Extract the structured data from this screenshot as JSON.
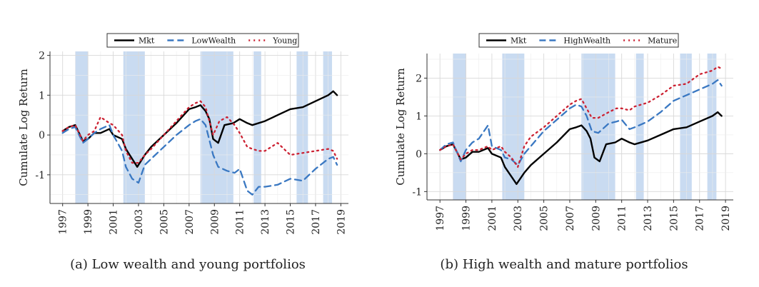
{
  "chart_data": [
    {
      "type": "line",
      "caption": "(a) Low wealth and young portfolios",
      "ylabel": "Cumulate Log Return",
      "xlim": [
        1996.0,
        2019.6
      ],
      "ylim": [
        -1.72,
        2.1
      ],
      "yticks": [
        -1,
        0,
        1,
        2
      ],
      "xticks": [
        1997,
        1999,
        2001,
        2003,
        2005,
        2007,
        2009,
        2011,
        2013,
        2015,
        2017,
        2019
      ],
      "grid": true,
      "legend": "top",
      "recessions": [
        [
          1998.0,
          1999.0
        ],
        [
          2001.8,
          2003.5
        ],
        [
          2007.9,
          2010.5
        ],
        [
          2012.1,
          2012.7
        ],
        [
          2015.5,
          2016.4
        ],
        [
          2017.6,
          2018.3
        ]
      ],
      "series": [
        {
          "name": "Mkt",
          "color": "#000000",
          "dash": "solid",
          "x": [
            1997,
            1997.5,
            1998,
            1998.6,
            1999,
            1999.5,
            2000,
            2000.7,
            2001,
            2001.7,
            2002,
            2002.5,
            2002.9,
            2003.5,
            2004,
            2005,
            2006,
            2007,
            2007.5,
            2007.9,
            2008.3,
            2008.6,
            2008.9,
            2009.3,
            2009.8,
            2010.5,
            2011,
            2011.6,
            2012,
            2013,
            2014,
            2015,
            2016,
            2017,
            2018,
            2018.4,
            2018.7
          ],
          "y": [
            0.1,
            0.2,
            0.25,
            -0.15,
            -0.1,
            0.05,
            0.05,
            0.15,
            0.0,
            -0.1,
            -0.35,
            -0.6,
            -0.8,
            -0.5,
            -0.3,
            0.0,
            0.3,
            0.65,
            0.7,
            0.75,
            0.6,
            0.4,
            -0.1,
            -0.2,
            0.25,
            0.3,
            0.4,
            0.3,
            0.25,
            0.35,
            0.5,
            0.65,
            0.7,
            0.85,
            1.0,
            1.1,
            1.0
          ]
        },
        {
          "name": "LowWealth",
          "color": "#3a78c2",
          "dash": "dashed",
          "x": [
            1997,
            1997.5,
            1998,
            1998.6,
            1999,
            1999.5,
            2000,
            2000.7,
            2001,
            2001.7,
            2002,
            2002.5,
            2003,
            2003.5,
            2004,
            2005,
            2006,
            2007,
            2007.5,
            2007.9,
            2008.3,
            2008.9,
            2009.3,
            2010,
            2010.6,
            2011,
            2011.6,
            2012,
            2012.5,
            2013,
            2014,
            2015,
            2016,
            2017,
            2018,
            2018.4,
            2018.7
          ],
          "y": [
            0.05,
            0.15,
            0.2,
            -0.2,
            -0.1,
            0.05,
            0.15,
            0.25,
            0.0,
            -0.4,
            -0.8,
            -1.1,
            -1.2,
            -0.75,
            -0.6,
            -0.3,
            0.0,
            0.25,
            0.35,
            0.4,
            0.25,
            -0.5,
            -0.8,
            -0.9,
            -0.95,
            -0.85,
            -1.4,
            -1.5,
            -1.3,
            -1.3,
            -1.25,
            -1.1,
            -1.15,
            -0.85,
            -0.6,
            -0.55,
            -0.75
          ]
        },
        {
          "name": "Young",
          "color": "#cc2233",
          "dash": "dotted",
          "x": [
            1997,
            1997.5,
            1998,
            1998.6,
            1999,
            1999.5,
            2000,
            2000.7,
            2001,
            2001.7,
            2002,
            2002.5,
            2003,
            2003.5,
            2004,
            2005,
            2006,
            2007,
            2007.5,
            2007.9,
            2008.3,
            2008.9,
            2009.4,
            2010,
            2010.6,
            2011,
            2011.6,
            2012,
            2012.5,
            2013,
            2014,
            2015,
            2016,
            2017,
            2018,
            2018.4,
            2018.7
          ],
          "y": [
            0.1,
            0.2,
            0.25,
            -0.15,
            0.0,
            0.1,
            0.45,
            0.3,
            0.25,
            0.0,
            -0.4,
            -0.7,
            -0.7,
            -0.5,
            -0.35,
            0.0,
            0.35,
            0.7,
            0.8,
            0.85,
            0.7,
            0.0,
            0.35,
            0.45,
            0.25,
            0.05,
            -0.3,
            -0.35,
            -0.4,
            -0.4,
            -0.2,
            -0.5,
            -0.45,
            -0.4,
            -0.35,
            -0.4,
            -0.6
          ]
        }
      ]
    },
    {
      "type": "line",
      "caption": "(b) High wealth and mature portfolios",
      "ylabel": "Cumulate Log Return",
      "xlim": [
        1996.0,
        2019.6
      ],
      "ylim": [
        -1.22,
        2.65
      ],
      "yticks": [
        -1,
        0,
        1,
        2
      ],
      "xticks": [
        1997,
        1999,
        2001,
        2003,
        2005,
        2007,
        2009,
        2011,
        2013,
        2015,
        2017,
        2019
      ],
      "grid": true,
      "legend": "top",
      "recessions": [
        [
          1998.0,
          1999.0
        ],
        [
          2001.8,
          2003.5
        ],
        [
          2007.9,
          2010.5
        ],
        [
          2012.1,
          2012.7
        ],
        [
          2015.5,
          2016.4
        ],
        [
          2017.6,
          2018.3
        ]
      ],
      "series": [
        {
          "name": "Mkt",
          "color": "#000000",
          "dash": "solid",
          "x": [
            1997,
            1997.5,
            1998,
            1998.6,
            1999,
            1999.5,
            2000,
            2000.7,
            2001,
            2001.7,
            2002,
            2002.5,
            2002.9,
            2003.5,
            2004,
            2005,
            2006,
            2007,
            2007.5,
            2007.9,
            2008.3,
            2008.6,
            2008.9,
            2009.3,
            2009.8,
            2010.5,
            2011,
            2011.6,
            2012,
            2013,
            2014,
            2015,
            2016,
            2017,
            2018,
            2018.4,
            2018.7
          ],
          "y": [
            0.1,
            0.2,
            0.25,
            -0.15,
            -0.1,
            0.05,
            0.05,
            0.15,
            0.0,
            -0.1,
            -0.35,
            -0.6,
            -0.8,
            -0.5,
            -0.3,
            0.0,
            0.3,
            0.65,
            0.7,
            0.75,
            0.6,
            0.4,
            -0.1,
            -0.2,
            0.25,
            0.3,
            0.4,
            0.3,
            0.25,
            0.35,
            0.5,
            0.65,
            0.7,
            0.85,
            1.0,
            1.1,
            1.0
          ]
        },
        {
          "name": "HighWealth",
          "color": "#3a78c2",
          "dash": "dashed",
          "x": [
            1997,
            1997.5,
            1998,
            1998.6,
            1999,
            1999.5,
            2000,
            2000.7,
            2001,
            2001.7,
            2002,
            2002.5,
            2003,
            2003.5,
            2004,
            2005,
            2006,
            2007,
            2007.5,
            2007.9,
            2008.3,
            2008.7,
            2009.2,
            2010,
            2010.6,
            2011,
            2011.6,
            2012,
            2013,
            2014,
            2015,
            2016,
            2017,
            2018,
            2018.4,
            2018.7
          ],
          "y": [
            0.1,
            0.25,
            0.3,
            -0.2,
            0.1,
            0.3,
            0.4,
            0.75,
            0.2,
            0.1,
            -0.1,
            -0.15,
            -0.3,
            0.0,
            0.2,
            0.6,
            0.9,
            1.2,
            1.3,
            1.25,
            1.0,
            0.6,
            0.55,
            0.8,
            0.85,
            0.9,
            0.65,
            0.7,
            0.85,
            1.1,
            1.4,
            1.55,
            1.7,
            1.85,
            1.95,
            1.8
          ]
        },
        {
          "name": "Mature",
          "color": "#cc2233",
          "dash": "dotted",
          "x": [
            1997,
            1997.5,
            1998,
            1998.6,
            1999,
            1999.5,
            2000,
            2000.7,
            2001,
            2001.7,
            2002,
            2002.5,
            2003,
            2003.5,
            2004,
            2005,
            2006,
            2007,
            2007.5,
            2007.9,
            2008.3,
            2008.7,
            2009.2,
            2010,
            2010.6,
            2011,
            2011.6,
            2012,
            2013,
            2014,
            2015,
            2016,
            2017,
            2018,
            2018.4,
            2018.7
          ],
          "y": [
            0.1,
            0.2,
            0.25,
            -0.15,
            0.0,
            0.1,
            0.1,
            0.2,
            0.1,
            0.2,
            0.05,
            -0.1,
            -0.35,
            0.2,
            0.45,
            0.7,
            1.0,
            1.3,
            1.4,
            1.45,
            1.2,
            0.95,
            0.95,
            1.1,
            1.2,
            1.2,
            1.15,
            1.25,
            1.35,
            1.55,
            1.8,
            1.85,
            2.1,
            2.2,
            2.3,
            2.25
          ]
        }
      ]
    }
  ]
}
